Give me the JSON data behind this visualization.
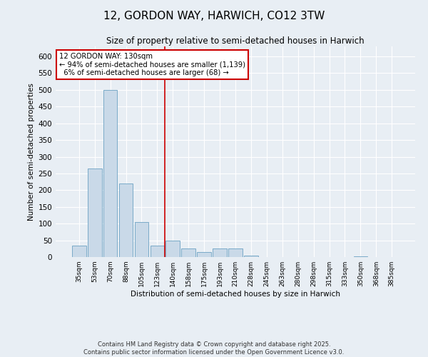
{
  "title": "12, GORDON WAY, HARWICH, CO12 3TW",
  "subtitle": "Size of property relative to semi-detached houses in Harwich",
  "xlabel": "Distribution of semi-detached houses by size in Harwich",
  "ylabel": "Number of semi-detached properties",
  "bar_labels": [
    "35sqm",
    "53sqm",
    "70sqm",
    "88sqm",
    "105sqm",
    "123sqm",
    "140sqm",
    "158sqm",
    "175sqm",
    "193sqm",
    "210sqm",
    "228sqm",
    "245sqm",
    "263sqm",
    "280sqm",
    "298sqm",
    "315sqm",
    "333sqm",
    "350sqm",
    "368sqm",
    "385sqm"
  ],
  "bar_values": [
    35,
    265,
    500,
    220,
    105,
    35,
    50,
    25,
    15,
    25,
    25,
    5,
    1,
    1,
    1,
    1,
    1,
    1,
    2,
    1,
    1
  ],
  "bar_color": "#c9d9e8",
  "bar_edge_color": "#7aaac8",
  "ylim": [
    0,
    630
  ],
  "yticks": [
    0,
    50,
    100,
    150,
    200,
    250,
    300,
    350,
    400,
    450,
    500,
    550,
    600
  ],
  "property_label": "12 GORDON WAY: 130sqm",
  "pct_smaller": 94,
  "count_smaller": 1139,
  "pct_larger": 6,
  "count_larger": 68,
  "vline_color": "#cc0000",
  "annotation_box_color": "#cc0000",
  "bg_color": "#e8eef4",
  "footer_line1": "Contains HM Land Registry data © Crown copyright and database right 2025.",
  "footer_line2": "Contains public sector information licensed under the Open Government Licence v3.0."
}
